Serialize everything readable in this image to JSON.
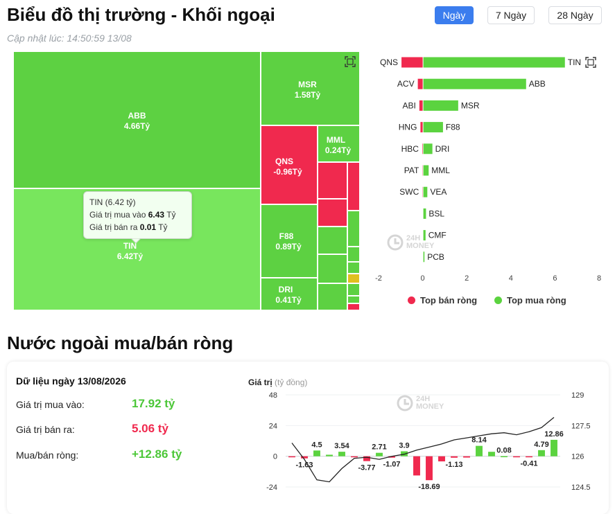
{
  "header": {
    "title": "Biểu đồ thị trường - Khối ngoại",
    "updated": "Cập nhật lúc: 14:50:59 13/08",
    "ranges": [
      "Ngày",
      "7 Ngày",
      "28 Ngày"
    ],
    "active_range": "Ngày"
  },
  "treemap": {
    "cells": [
      {
        "ticker": "ABB",
        "value": "4.66Tỷ"
      },
      {
        "ticker": "TIN",
        "value": "6.42Tỷ"
      },
      {
        "ticker": "MSR",
        "value": "1.58Tỷ"
      },
      {
        "ticker": "QNS",
        "value": "-0.96Tỷ"
      },
      {
        "ticker": "MML",
        "value": "0.24Tỷ"
      },
      {
        "ticker": "F88",
        "value": "0.89Tỷ"
      },
      {
        "ticker": "DRI",
        "value": "0.41Tỷ"
      }
    ],
    "tooltip": {
      "title": "TIN (6.42 tỷ)",
      "buy_label": "Giá trị mua vào",
      "buy_value": "6.43",
      "buy_unit": "Tỷ",
      "sell_label": "Giá trị bán ra",
      "sell_value": "0.01",
      "sell_unit": "Tỷ"
    }
  },
  "top_chart": {
    "type": "bar",
    "rows": [
      {
        "sell": "QNS",
        "sell_value": -0.96,
        "buy": "TIN",
        "buy_value": 6.42
      },
      {
        "sell": "ACV",
        "sell_value": -0.22,
        "buy": "ABB",
        "buy_value": 4.66
      },
      {
        "sell": "ABI",
        "sell_value": -0.15,
        "buy": "MSR",
        "buy_value": 1.58
      },
      {
        "sell": "HNG",
        "sell_value": -0.1,
        "buy": "F88",
        "buy_value": 0.89
      },
      {
        "sell": "HBC",
        "sell_value": -0.02,
        "buy": "DRI",
        "buy_value": 0.41
      },
      {
        "sell": "PAT",
        "sell_value": -0.01,
        "buy": "MML",
        "buy_value": 0.24
      },
      {
        "sell": "SWC",
        "sell_value": -0.01,
        "buy": "VEA",
        "buy_value": 0.18
      },
      {
        "sell": "",
        "sell_value": 0,
        "buy": "BSL",
        "buy_value": 0.12
      },
      {
        "sell": "",
        "sell_value": 0,
        "buy": "CMF",
        "buy_value": 0.1
      },
      {
        "sell": "",
        "sell_value": 0,
        "buy": "PCB",
        "buy_value": 0.05
      }
    ],
    "xticks": [
      -2,
      0,
      2,
      4,
      6,
      8
    ],
    "xlim": [
      -2,
      8
    ],
    "legend": [
      "Top bán ròng",
      "Top mua ròng"
    ],
    "colors": {
      "sell": "#f0294e",
      "buy": "#5bd33f"
    },
    "watermark": [
      "24H",
      "MONEY"
    ]
  },
  "net": {
    "section_title": "Nước ngoài mua/bán ròng",
    "date_label": "Dữ liệu ngày 13/08/2026",
    "buy_label": "Giá trị mua vào:",
    "buy_value": "17.92 tỷ",
    "sell_label": "Giá trị bán ra:",
    "sell_value": "5.06 tỷ",
    "net_label": "Mua/bán ròng:",
    "net_value": "+12.86 tỷ",
    "colors": {
      "buy": "#4cc738",
      "sell": "#f0294e"
    }
  },
  "chart_data": {
    "type": "bar",
    "ylabel": "Giá trị",
    "yunit": "(tỷ đồng)",
    "left_ticks": [
      48,
      24,
      0,
      -24
    ],
    "right_ticks": [
      129,
      127.5,
      126,
      124.5
    ],
    "bars": [
      -0.5,
      -1.63,
      4.5,
      1.2,
      3.54,
      -0.6,
      -3.77,
      2.71,
      -1.07,
      3.9,
      -15.0,
      -18.69,
      -4.0,
      -1.13,
      -1.0,
      8.14,
      3.5,
      0.08,
      -0.3,
      -0.41,
      4.79,
      12.86
    ],
    "bar_labels": {
      "1": "-1.63",
      "2": "4.5",
      "4": "3.54",
      "6": "-3.77",
      "7": "2.71",
      "8": "-1.07",
      "9": "3.9",
      "11": "-18.69",
      "13": "-1.13",
      "15": "8.14",
      "17": "0.08",
      "19": "-0.41",
      "20": "4.79",
      "21": "12.86"
    },
    "line": [
      126.65,
      125.85,
      124.85,
      124.75,
      125.4,
      125.9,
      125.95,
      125.85,
      126.0,
      126.1,
      126.3,
      126.45,
      126.6,
      126.8,
      126.9,
      127.0,
      127.1,
      127.15,
      127.05,
      127.2,
      127.4,
      127.9
    ],
    "left_ylim": [
      -24,
      48
    ],
    "right_ylim": [
      124.5,
      129
    ]
  }
}
